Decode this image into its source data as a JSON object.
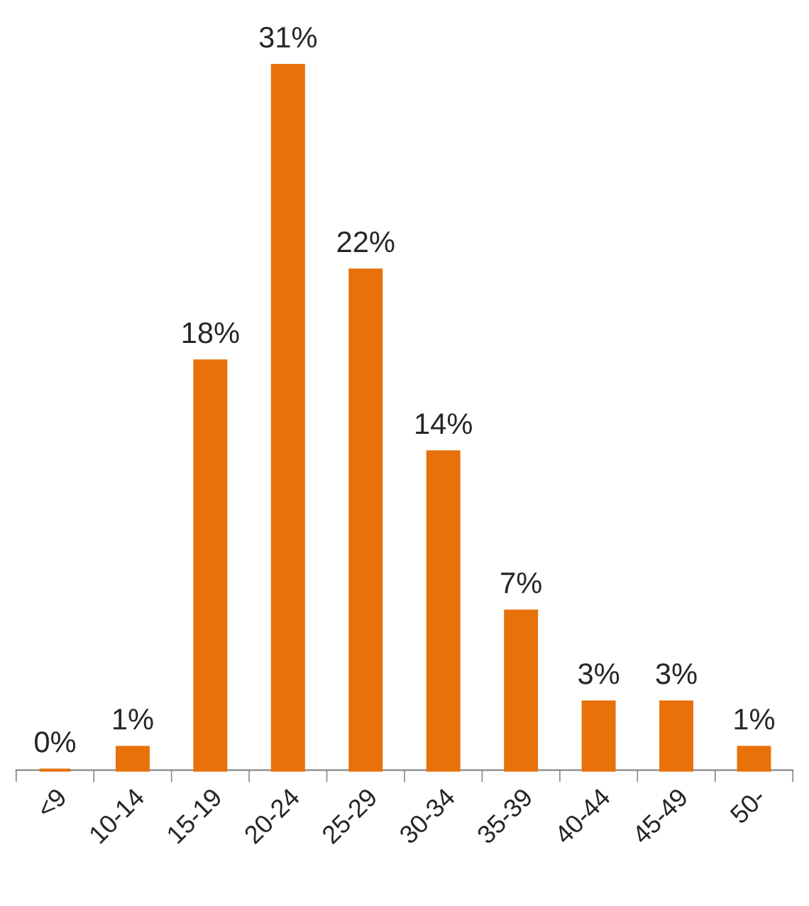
{
  "chart_data": {
    "type": "bar",
    "categories": [
      "<9",
      "10-14",
      "15-19",
      "20-24",
      "25-29",
      "30-34",
      "35-39",
      "40-44",
      "45-49",
      "50-"
    ],
    "values": [
      0,
      1,
      18,
      31,
      22,
      14,
      7,
      3,
      3,
      1
    ],
    "value_labels": [
      "0%",
      "1%",
      "18%",
      "31%",
      "22%",
      "14%",
      "7%",
      "3%",
      "3%",
      "1%"
    ],
    "color": "#e8710a",
    "grid": false,
    "legend": false
  }
}
